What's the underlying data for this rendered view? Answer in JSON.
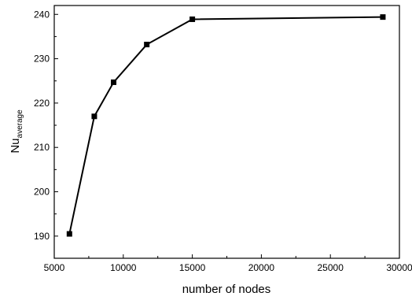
{
  "chart_data": {
    "type": "line",
    "xlabel": "number of nodes",
    "ylabel": "Nu",
    "ylabel_subscript": "average",
    "xlim": [
      5000,
      30000
    ],
    "ylim": [
      185,
      242
    ],
    "xticks": [
      5000,
      10000,
      15000,
      20000,
      25000,
      30000
    ],
    "yticks": [
      190,
      200,
      210,
      220,
      230,
      240
    ],
    "grid": false,
    "marker": "square",
    "line_color": "#000000",
    "series": [
      {
        "x": [
          6100,
          7900,
          9300,
          11700,
          15000,
          28800
        ],
        "y": [
          190.5,
          217,
          224.7,
          233.2,
          238.9,
          239.4
        ]
      }
    ]
  }
}
